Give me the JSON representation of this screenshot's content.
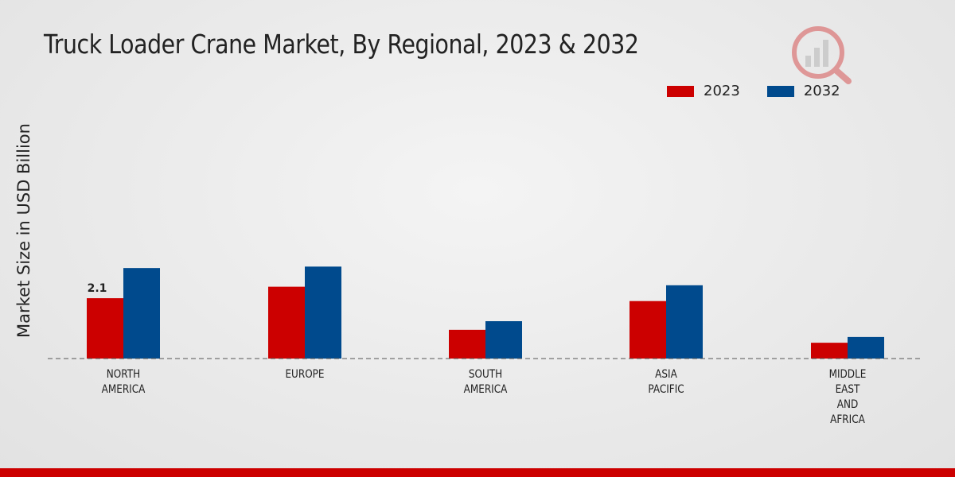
{
  "title": "Truck Loader Crane Market, By Regional, 2023 & 2032",
  "colors": {
    "2023": "#cc0000",
    "2032": "#004a8d",
    "accent": "#cc0000"
  },
  "legend": [
    {
      "label": "2023",
      "color": "#cc0000"
    },
    {
      "label": "2032",
      "color": "#004a8d"
    }
  ],
  "logo_icon": "chart-magnifier-icon",
  "chart_data": {
    "type": "bar",
    "title": "Truck Loader Crane Market, By Regional, 2023 & 2032",
    "xlabel": "",
    "ylabel": "Market Size in USD Billion",
    "ylim": [
      0,
      8.3
    ],
    "grid": false,
    "legend_position": "top-right",
    "categories": [
      [
        "NORTH",
        "AMERICA"
      ],
      [
        "EUROPE"
      ],
      [
        "SOUTH",
        "AMERICA"
      ],
      [
        "ASIA",
        "PACIFIC"
      ],
      [
        "MIDDLE",
        "EAST",
        "AND",
        "AFRICA"
      ]
    ],
    "series": [
      {
        "name": "2023",
        "color": "#cc0000",
        "values": [
          2.1,
          2.5,
          1.0,
          2.0,
          0.55
        ]
      },
      {
        "name": "2032",
        "color": "#004a8d",
        "values": [
          3.15,
          3.2,
          1.3,
          2.55,
          0.75
        ]
      }
    ],
    "data_labels": [
      {
        "series": 0,
        "index": 0,
        "text": "2.1"
      }
    ]
  }
}
